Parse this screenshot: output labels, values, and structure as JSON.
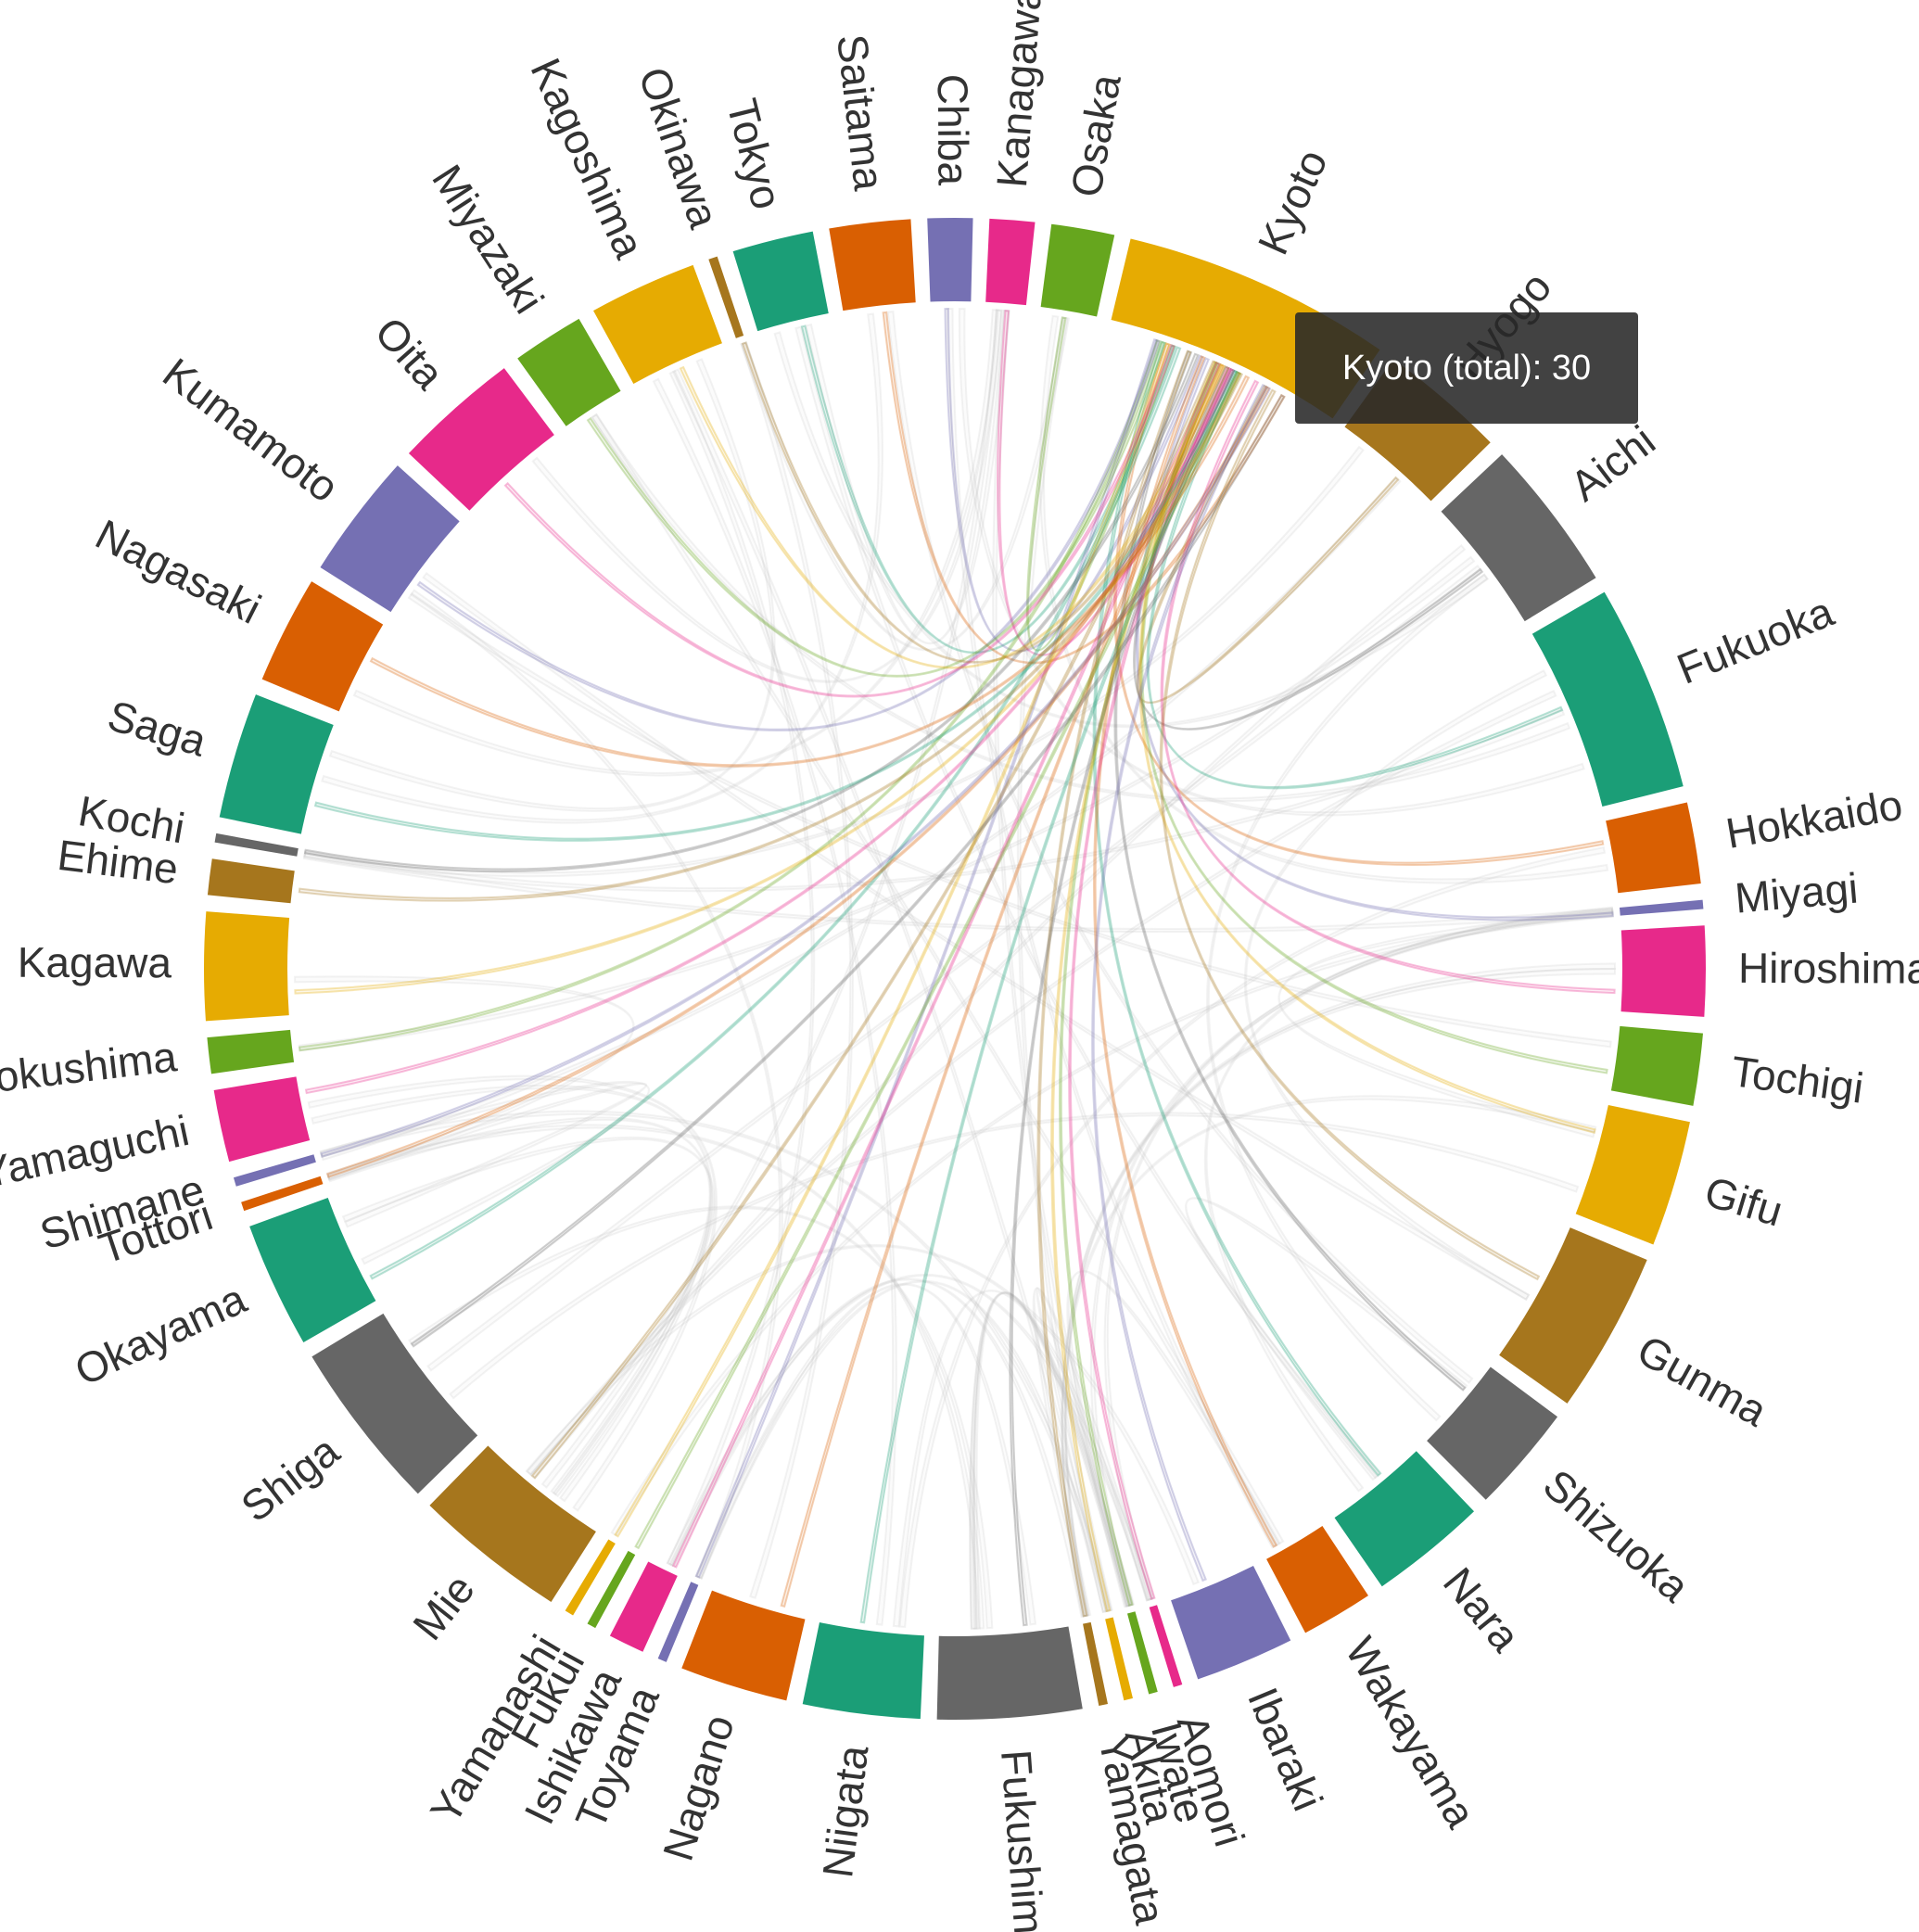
{
  "chart_data": {
    "type": "chord",
    "focus_group": "Kyoto",
    "tooltip": {
      "label": "Kyoto (total)",
      "value": 30
    },
    "groups": [
      {
        "name": "Tokyo",
        "value": 9,
        "color": "#1b9e77"
      },
      {
        "name": "Saitama",
        "value": 9,
        "color": "#d95f02"
      },
      {
        "name": "Chiba",
        "value": 5,
        "color": "#7570b3"
      },
      {
        "name": "Kanagawa",
        "value": 5,
        "color": "#e7298a"
      },
      {
        "name": "Osaka",
        "value": 7,
        "color": "#66a61e"
      },
      {
        "name": "Kyoto",
        "value": 30,
        "color": "#e6ab02"
      },
      {
        "name": "Hyogo",
        "value": 14,
        "color": "#a6761d"
      },
      {
        "name": "Aichi",
        "value": 17,
        "color": "#666666"
      },
      {
        "name": "Fukuoka",
        "value": 23,
        "color": "#1b9e77"
      },
      {
        "name": "Hokkaido",
        "value": 9,
        "color": "#d95f02"
      },
      {
        "name": "Miyagi",
        "value": 1,
        "color": "#7570b3"
      },
      {
        "name": "Hiroshima",
        "value": 10,
        "color": "#e7298a"
      },
      {
        "name": "Tochigi",
        "value": 8,
        "color": "#66a61e"
      },
      {
        "name": "Gifu",
        "value": 14,
        "color": "#e6ab02"
      },
      {
        "name": "Gunma",
        "value": 18,
        "color": "#a6761d"
      },
      {
        "name": "Shizuoka",
        "value": 12,
        "color": "#666666"
      },
      {
        "name": "Nara",
        "value": 13,
        "color": "#1b9e77"
      },
      {
        "name": "Wakayama",
        "value": 8,
        "color": "#d95f02"
      },
      {
        "name": "Ibaraki",
        "value": 11,
        "color": "#7570b3"
      },
      {
        "name": "Aomori",
        "value": 1,
        "color": "#e7298a"
      },
      {
        "name": "Iwate",
        "value": 1,
        "color": "#66a61e"
      },
      {
        "name": "Akita",
        "value": 1,
        "color": "#e6ab02"
      },
      {
        "name": "Yamagata",
        "value": 1,
        "color": "#a6761d"
      },
      {
        "name": "Fukushima",
        "value": 16,
        "color": "#666666"
      },
      {
        "name": "Niigata",
        "value": 13,
        "color": "#1b9e77"
      },
      {
        "name": "Nagano",
        "value": 12,
        "color": "#d95f02"
      },
      {
        "name": "Toyama",
        "value": 1,
        "color": "#7570b3"
      },
      {
        "name": "Ishikawa",
        "value": 4,
        "color": "#e7298a"
      },
      {
        "name": "Fukui",
        "value": 1,
        "color": "#66a61e"
      },
      {
        "name": "Yamanashi",
        "value": 1,
        "color": "#e6ab02"
      },
      {
        "name": "Mie",
        "value": 17,
        "color": "#a6761d"
      },
      {
        "name": "Shiga",
        "value": 19,
        "color": "#666666"
      },
      {
        "name": "Okayama",
        "value": 14,
        "color": "#1b9e77"
      },
      {
        "name": "Tottori",
        "value": 1,
        "color": "#d95f02"
      },
      {
        "name": "Shimane",
        "value": 1,
        "color": "#7570b3"
      },
      {
        "name": "Yamaguchi",
        "value": 8,
        "color": "#e7298a"
      },
      {
        "name": "Tokushima",
        "value": 4,
        "color": "#66a61e"
      },
      {
        "name": "Kagawa",
        "value": 12,
        "color": "#e6ab02"
      },
      {
        "name": "Ehime",
        "value": 4,
        "color": "#a6761d"
      },
      {
        "name": "Kochi",
        "value": 1,
        "color": "#666666"
      },
      {
        "name": "Saga",
        "value": 14,
        "color": "#1b9e77"
      },
      {
        "name": "Nagasaki",
        "value": 12,
        "color": "#d95f02"
      },
      {
        "name": "Kumamoto",
        "value": 14,
        "color": "#7570b3"
      },
      {
        "name": "Oita",
        "value": 14,
        "color": "#e7298a"
      },
      {
        "name": "Miyazaki",
        "value": 8,
        "color": "#66a61e"
      },
      {
        "name": "Kagoshima",
        "value": 12,
        "color": "#e6ab02"
      },
      {
        "name": "Okinawa",
        "value": 1,
        "color": "#a6761d"
      }
    ]
  }
}
